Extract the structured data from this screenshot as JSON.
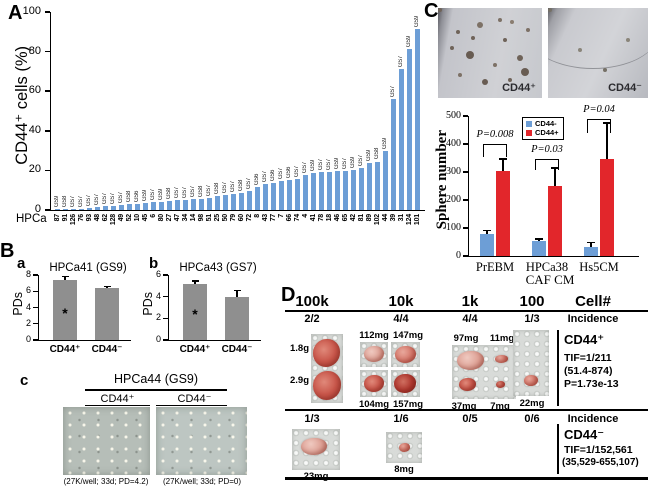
{
  "panelA": {
    "letter": "A",
    "bar_color": "#6d9ed6"
  },
  "panelB": {
    "letter": "B",
    "a": {
      "letter": "a"
    },
    "b": {
      "letter": "b"
    },
    "c": {
      "letter": "c",
      "title": "HPCa44 (GS9)",
      "col1": "CD44⁺",
      "col2": "CD44⁻",
      "caption1": "(27K/well; 33d; PD=4.2)",
      "caption2": "(27K/well; 33d; PD=0)"
    }
  },
  "panelC": {
    "letter": "C",
    "img_pos_label": "CD44⁺",
    "img_neg_label": "CD44⁻"
  },
  "panelD": {
    "letter": "D",
    "col_headers": [
      "100k",
      "10k",
      "1k",
      "100",
      "Cell#"
    ],
    "incidence_label": "Incidence",
    "cd44pos": {
      "incidence": [
        "2/2",
        "4/4",
        "4/4",
        "1/3"
      ],
      "label": "CD44⁺",
      "tif": "TIF=1/211",
      "ci": "(51.4-874)",
      "p": "P=1.73e-13",
      "w100k": [
        "1.8g",
        "2.9g"
      ],
      "w10k_top": [
        "112mg",
        "147mg"
      ],
      "w10k_bottom": [
        "104mg",
        "157mg"
      ],
      "w1k_top": [
        "97mg",
        "11mg"
      ],
      "w1k_bottom": [
        "37mg",
        "7mg"
      ],
      "w100": "22mg"
    },
    "cd44neg": {
      "incidence": [
        "1/3",
        "1/6",
        "0/5",
        "0/6"
      ],
      "label": "CD44⁻",
      "tif": "TIF=1/152,561",
      "ci": "(35,529-655,107)",
      "w100k": "23mg",
      "w10k": "8mg"
    }
  },
  "chart_data": [
    {
      "id": "A",
      "type": "bar",
      "title": "",
      "ylabel": "CD44⁺ cells (%)",
      "xlabel": "HPCa",
      "ylim": [
        0,
        100
      ],
      "yticks": [
        0,
        20,
        40,
        60,
        80,
        100
      ],
      "categories": [
        "87",
        "91",
        "126",
        "76",
        "93",
        "48",
        "62",
        "128",
        "49",
        "52",
        "10",
        "45",
        "6",
        "80",
        "27",
        "47",
        "34",
        "14",
        "98",
        "51",
        "25",
        "50",
        "79",
        "60",
        "72",
        "8",
        "43",
        "77",
        "7",
        "66",
        "74",
        "4",
        "41",
        "78",
        "18",
        "46",
        "65",
        "42",
        "81",
        "89",
        "102",
        "44",
        "39",
        "31",
        "124",
        "101"
      ],
      "bar_labels": [
        "GS9",
        "GS8",
        "GS7",
        "GS7",
        "GS7",
        "GS7",
        "GS7",
        "GS7",
        "GS7",
        "GS8",
        "GS6",
        "GS9",
        "GS7",
        "GS9",
        "GS8",
        "GS7",
        "GS7",
        "GS7",
        "GS8",
        "GS7",
        "GS8",
        "GS7",
        "GS7",
        "GS8",
        "GS7",
        "GS6",
        "GS7",
        "GS6",
        "GS7",
        "GS6",
        "GS7",
        "GS7",
        "GS9",
        "GS7",
        "GS7",
        "GS9",
        "GS7",
        "GS9",
        "GS7",
        "GS9",
        "GS8",
        "GS9",
        "GS7",
        "GS7",
        "GS9",
        "GS9"
      ],
      "values": [
        0.3,
        0.4,
        0.5,
        0.6,
        1,
        1.5,
        1.8,
        2,
        2.3,
        2.8,
        3.2,
        3.5,
        3.8,
        4.2,
        4.6,
        5,
        5.2,
        5.4,
        5.6,
        6,
        7,
        7.5,
        8,
        8.5,
        9.5,
        11.5,
        13,
        13.5,
        14.5,
        15,
        15.5,
        17.5,
        18.5,
        19,
        19,
        19.5,
        19.5,
        20,
        21,
        23.5,
        24.5,
        30,
        56,
        71,
        81.5,
        91.5
      ]
    },
    {
      "id": "Ba",
      "type": "bar",
      "title": "HPCa41 (GS9)",
      "ylabel": "PDs",
      "ylim": [
        0,
        8
      ],
      "yticks": [
        0,
        2,
        4,
        6,
        8
      ],
      "categories": [
        "CD44⁺",
        "CD44⁻"
      ],
      "values": [
        7.4,
        6.4
      ],
      "errors": [
        0.3,
        0.15
      ],
      "annotations": [
        "*",
        ""
      ]
    },
    {
      "id": "Bb",
      "type": "bar",
      "title": "HPCa43 (GS7)",
      "ylabel": "PDs",
      "ylim": [
        0,
        6
      ],
      "yticks": [
        0,
        2,
        4,
        6
      ],
      "categories": [
        "CD44⁺",
        "CD44⁻"
      ],
      "values": [
        5.2,
        4.0
      ],
      "errors": [
        0.2,
        0.55
      ],
      "annotations": [
        "*",
        ""
      ]
    },
    {
      "id": "C",
      "type": "bar",
      "title": "",
      "ylabel": "Sphere number",
      "xlabel": "CAF CM",
      "ylim": [
        0,
        500
      ],
      "yticks": [
        0,
        100,
        200,
        300,
        400,
        500
      ],
      "categories": [
        "PrEBM",
        "HPCa38",
        "Hs5CM"
      ],
      "series": [
        {
          "name": "CD44-",
          "color": "#6d9ed6",
          "values": [
            80,
            52,
            33
          ],
          "errors": [
            8,
            6,
            12
          ]
        },
        {
          "name": "CD44+",
          "color": "#e2262b",
          "values": [
            305,
            250,
            348
          ],
          "errors": [
            38,
            62,
            125
          ]
        }
      ],
      "pvalues": [
        "P=0.008",
        "P=0.03",
        "P=0.04"
      ],
      "brackets": [
        {
          "y": 400,
          "drop": 12
        },
        {
          "y": 345,
          "drop": 10
        },
        {
          "y": 490,
          "drop": 13
        }
      ],
      "legend_position": "top-center"
    }
  ]
}
